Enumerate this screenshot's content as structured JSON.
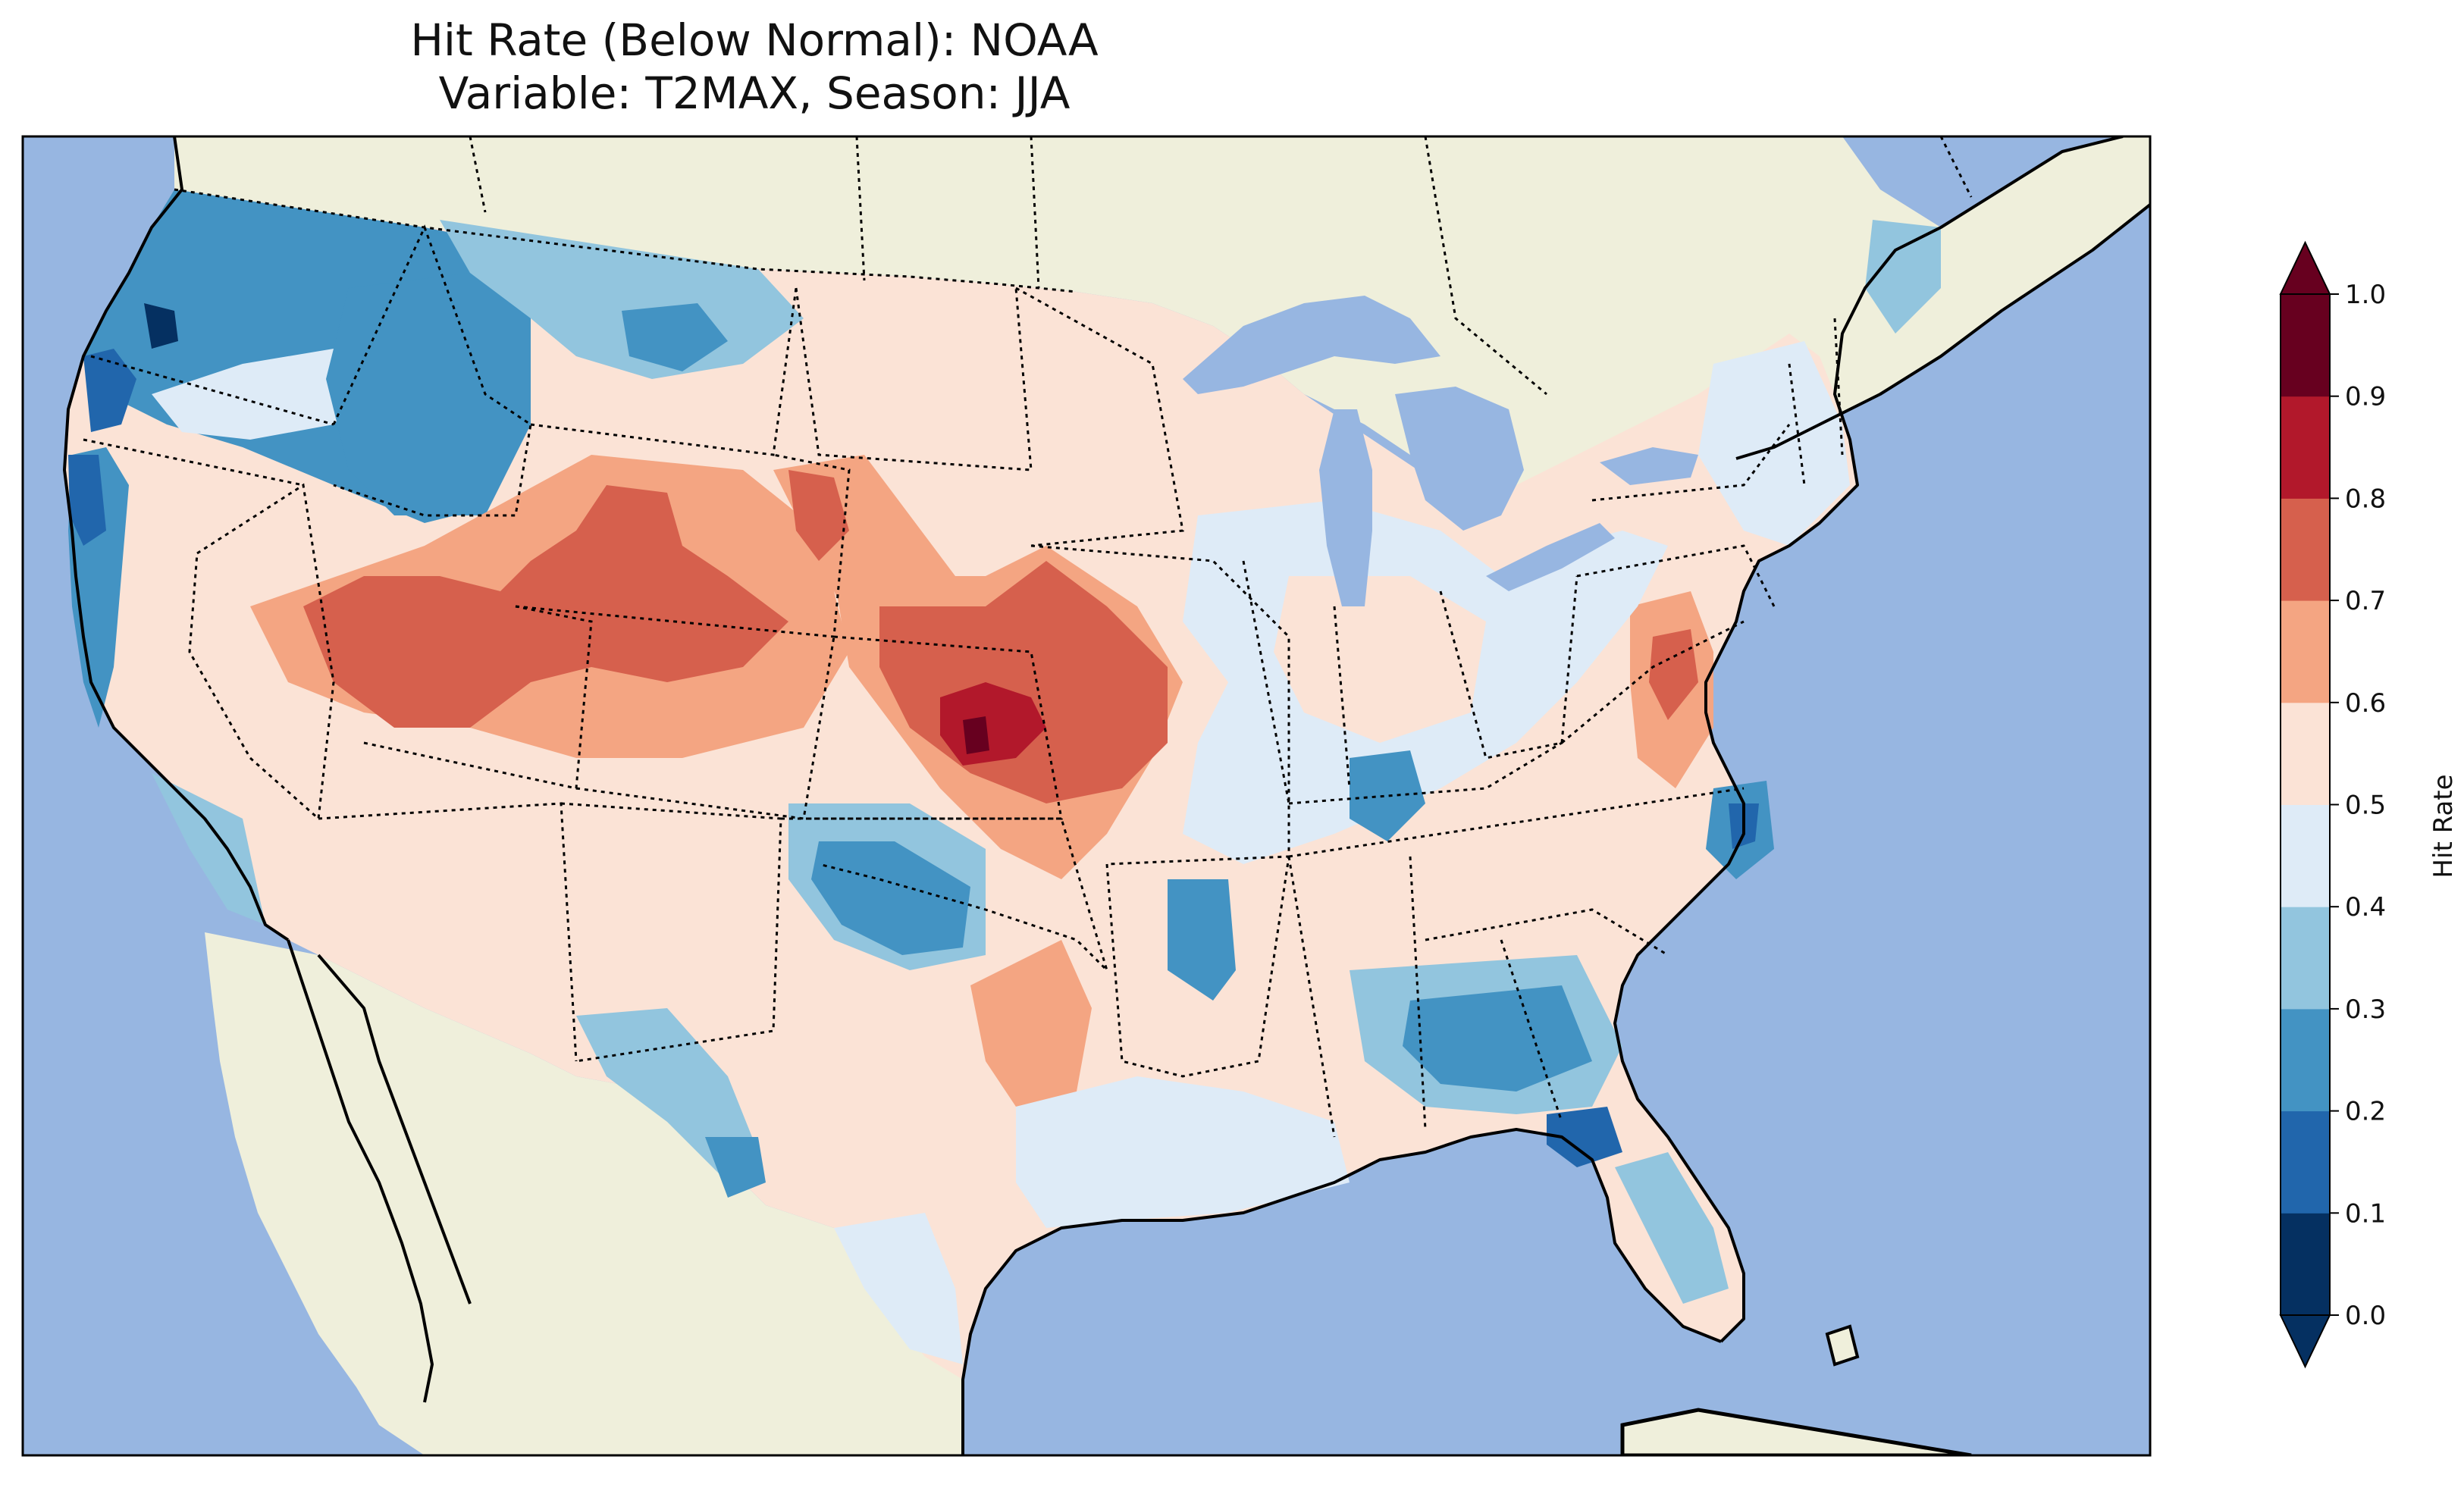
{
  "title": {
    "line1": "Hit Rate (Below Normal): NOAA",
    "line2": "Variable: T2MAX, Season: JJA"
  },
  "map": {
    "region": "Contiguous United States",
    "ocean_color": "#97b6e1",
    "land_color": "#efefdb"
  },
  "colorbar": {
    "label": "Hit Rate",
    "ticks": [
      "0.0",
      "0.1",
      "0.2",
      "0.3",
      "0.4",
      "0.5",
      "0.6",
      "0.7",
      "0.8",
      "0.9",
      "1.0"
    ],
    "bins": [
      {
        "range": "0.0-0.1",
        "color": "#053061"
      },
      {
        "range": "0.1-0.2",
        "color": "#2166ac"
      },
      {
        "range": "0.2-0.3",
        "color": "#4393c3"
      },
      {
        "range": "0.3-0.4",
        "color": "#92c5de"
      },
      {
        "range": "0.4-0.5",
        "color": "#deebf7"
      },
      {
        "range": "0.5-0.6",
        "color": "#fbe3d6"
      },
      {
        "range": "0.6-0.7",
        "color": "#f4a582"
      },
      {
        "range": "0.7-0.8",
        "color": "#d6604d"
      },
      {
        "range": "0.8-0.9",
        "color": "#b2182b"
      },
      {
        "range": "0.9-1.0",
        "color": "#67001f"
      }
    ],
    "extend": "both"
  }
}
